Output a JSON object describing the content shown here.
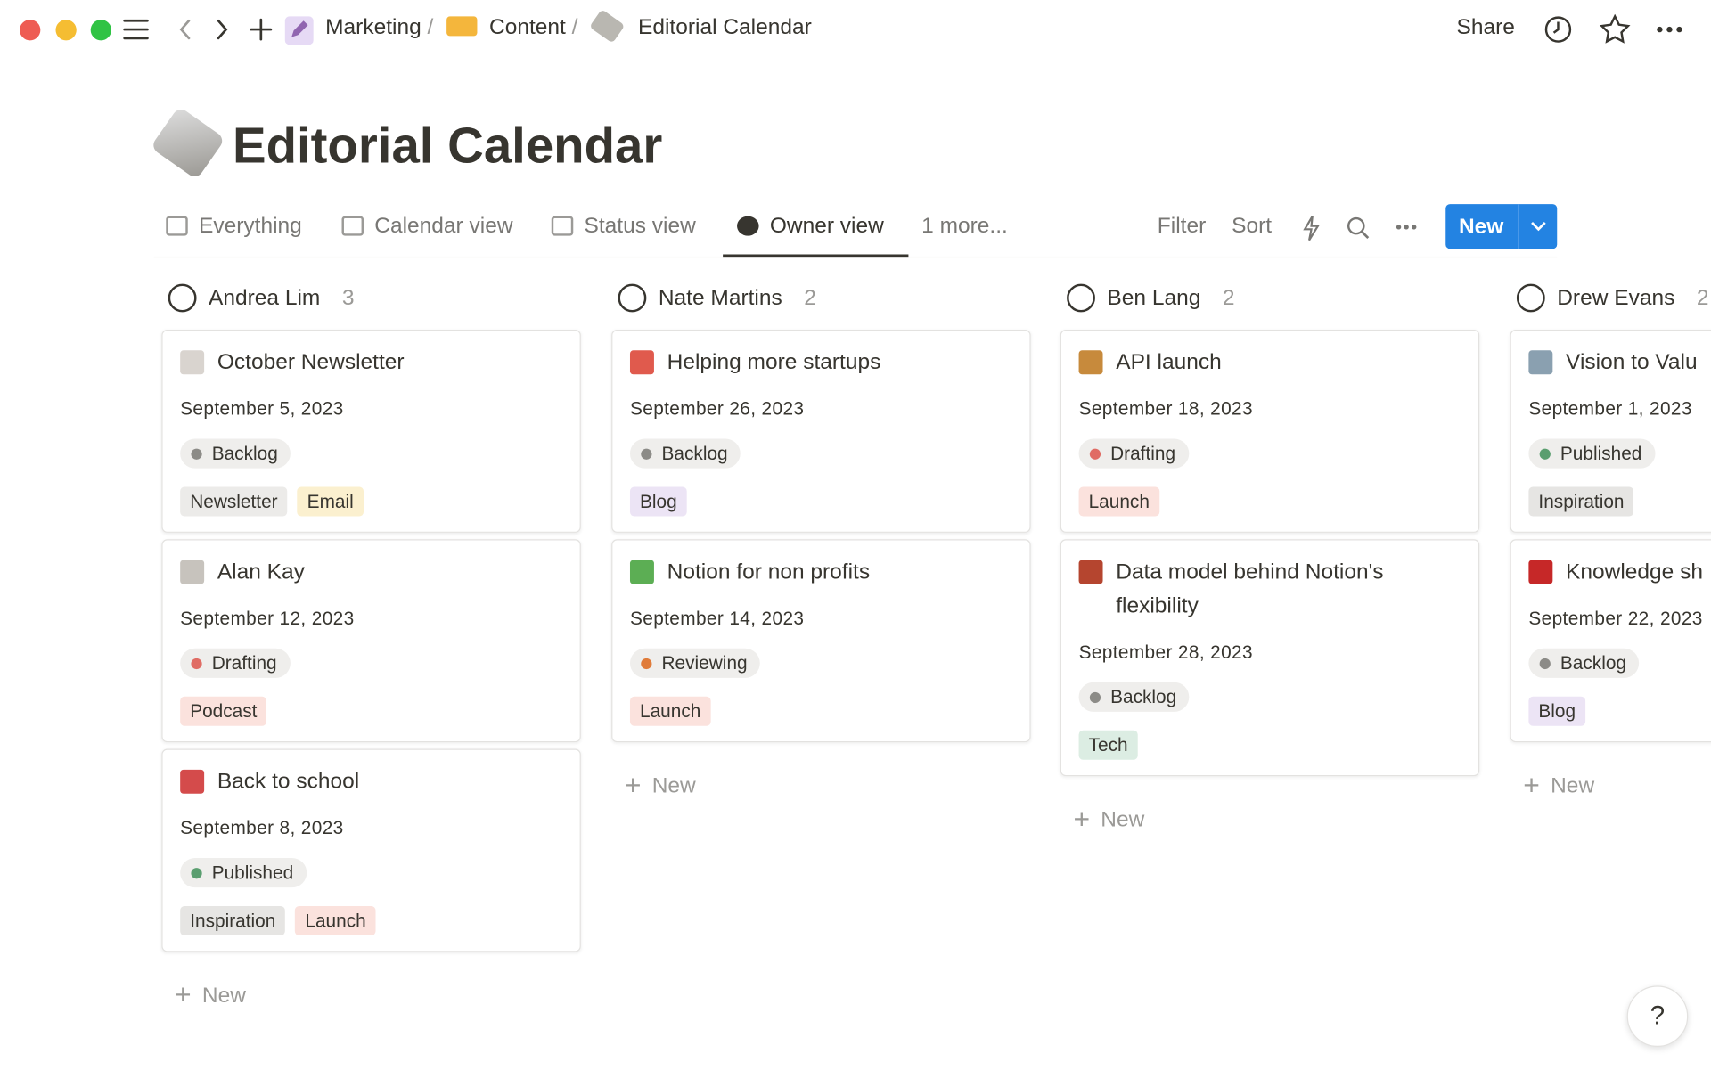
{
  "breadcrumb": [
    "Marketing",
    "Content",
    "Editorial Calendar"
  ],
  "separator": "/",
  "header_actions": {
    "share": "Share"
  },
  "title": "Editorial Calendar",
  "tabs": [
    "Everything",
    "Calendar view",
    "Status view",
    "Owner view",
    "1 more..."
  ],
  "active_tab": 3,
  "toolbar": {
    "filter": "Filter",
    "sort": "Sort",
    "new": "New"
  },
  "new_card": "New",
  "help": "?",
  "columns": [
    {
      "owner": "Andrea Lim",
      "count": "3",
      "cards": [
        {
          "title": "October Newsletter",
          "date": "September 5, 2023",
          "status": {
            "label": "Backlog",
            "color": "#8c8b87"
          },
          "tags": [
            {
              "label": "Newsletter",
              "color": "#ecebe9"
            },
            {
              "label": "Email",
              "color": "#fbf0cf"
            }
          ]
        },
        {
          "title": "Alan Kay",
          "date": "September 12, 2023",
          "status": {
            "label": "Drafting",
            "color": "#e06c64"
          },
          "tags": [
            {
              "label": "Podcast",
              "color": "#fbe2dd"
            }
          ]
        },
        {
          "title": "Back to school",
          "date": "September 8, 2023",
          "status": {
            "label": "Published",
            "color": "#5a9e6f"
          },
          "tags": [
            {
              "label": "Inspiration",
              "color": "#e6e5e3"
            },
            {
              "label": "Launch",
              "color": "#fbe2dd"
            }
          ]
        }
      ]
    },
    {
      "owner": "Nate Martins",
      "count": "2",
      "cards": [
        {
          "title": "Helping more startups",
          "date": "September 26, 2023",
          "status": {
            "label": "Backlog",
            "color": "#8c8b87"
          },
          "tags": [
            {
              "label": "Blog",
              "color": "#ece4f5"
            }
          ]
        },
        {
          "title": "Notion for non profits",
          "date": "September 14, 2023",
          "status": {
            "label": "Reviewing",
            "color": "#e07b39"
          },
          "tags": [
            {
              "label": "Launch",
              "color": "#fbe2dd"
            }
          ]
        }
      ]
    },
    {
      "owner": "Ben Lang",
      "count": "2",
      "cards": [
        {
          "title": "API launch",
          "date": "September 18, 2023",
          "status": {
            "label": "Drafting",
            "color": "#e06c64"
          },
          "tags": [
            {
              "label": "Launch",
              "color": "#fbe2dd"
            }
          ]
        },
        {
          "title": "Data model behind Notion's flexibility",
          "date": "September 28, 2023",
          "status": {
            "label": "Backlog",
            "color": "#8c8b87"
          },
          "tags": [
            {
              "label": "Tech",
              "color": "#dcede3"
            }
          ]
        }
      ]
    },
    {
      "owner": "Drew Evans",
      "count": "2",
      "cards": [
        {
          "title": "Vision to Valu",
          "date": "September 1, 2023",
          "status": {
            "label": "Published",
            "color": "#5a9e6f"
          },
          "tags": [
            {
              "label": "Inspiration",
              "color": "#e6e5e3"
            }
          ]
        },
        {
          "title": "Knowledge sh",
          "date": "September 22, 2023",
          "status": {
            "label": "Backlog",
            "color": "#8c8b87"
          },
          "tags": [
            {
              "label": "Blog",
              "color": "#ece4f5"
            }
          ]
        }
      ]
    }
  ]
}
